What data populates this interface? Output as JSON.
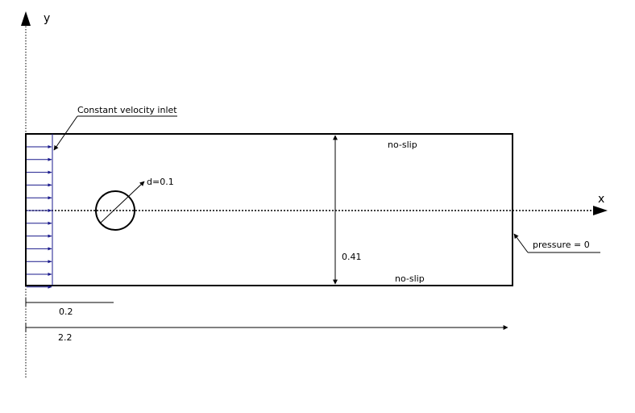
{
  "axes": {
    "x_label": "x",
    "y_label": "y"
  },
  "labels": {
    "inlet": "Constant velocity inlet",
    "diameter": "d=0.1",
    "top_wall": "no-slip",
    "bottom_wall": "no-slip",
    "height": "0.41",
    "outlet": "pressure = 0",
    "dim_cylinder_x": "0.2",
    "dim_length": "2.2"
  },
  "colors": {
    "inlet_arrows": "#1a1a8c",
    "lines": "#000000"
  },
  "inlet_arrow_count": 12
}
